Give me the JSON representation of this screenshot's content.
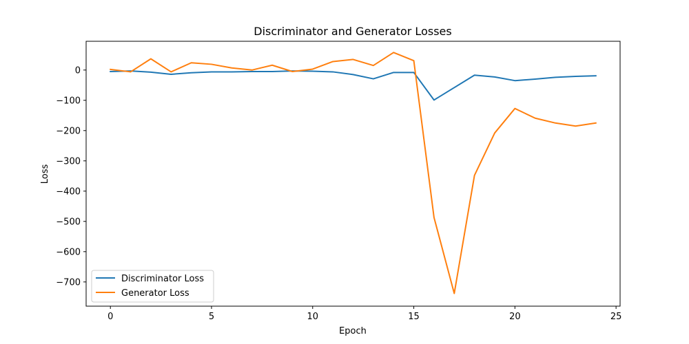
{
  "chart_data": {
    "type": "line",
    "title": "Discriminator and Generator Losses",
    "xlabel": "Epoch",
    "ylabel": "Loss",
    "xlim": [
      -1.2,
      25.2
    ],
    "ylim": [
      -780,
      95
    ],
    "xticks": [
      0,
      5,
      10,
      15,
      20,
      25
    ],
    "yticks": [
      0,
      -100,
      -200,
      -300,
      -400,
      -500,
      -600,
      -700
    ],
    "xtick_labels": [
      "0",
      "5",
      "10",
      "15",
      "20",
      "25"
    ],
    "ytick_labels": [
      "0",
      "−100",
      "−200",
      "−300",
      "−400",
      "−500",
      "−600",
      "−700"
    ],
    "grid": false,
    "legend_position": "lower-left",
    "x": [
      0,
      1,
      2,
      3,
      4,
      5,
      6,
      7,
      8,
      9,
      10,
      11,
      12,
      13,
      14,
      15,
      16,
      17,
      18,
      19,
      20,
      21,
      22,
      23,
      24
    ],
    "series": [
      {
        "name": "Discriminator Loss",
        "color": "#1f77b4",
        "values": [
          -5,
          -3,
          -7,
          -14,
          -9,
          -6,
          -6,
          -5,
          -5,
          -3,
          -4,
          -6,
          -15,
          -29,
          -8,
          -8,
          -99,
          -58,
          -17,
          -23,
          -35,
          -30,
          -24,
          -21,
          -19
        ]
      },
      {
        "name": "Generator Loss",
        "color": "#ff7f0e",
        "values": [
          2,
          -6,
          37,
          -6,
          24,
          19,
          7,
          0,
          16,
          -5,
          3,
          28,
          35,
          15,
          58,
          31,
          -487,
          -738,
          -348,
          -208,
          -127,
          -159,
          -175,
          -185,
          -175
        ]
      }
    ]
  }
}
